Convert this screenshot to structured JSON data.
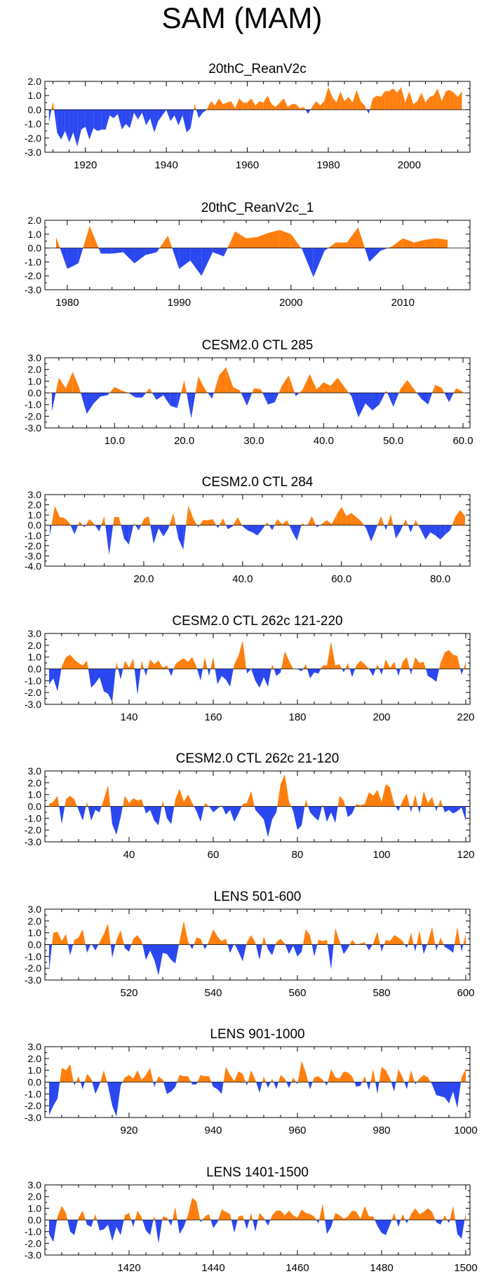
{
  "title": "SAM (MAM)",
  "colors": {
    "positive": "#ff7f0e",
    "negative": "#2a47f0",
    "axis": "#000000"
  },
  "chart_data": [
    {
      "type": "area",
      "title": "20thC_ReanV2c",
      "xlim": [
        1910,
        2015
      ],
      "ylim": [
        -3.0,
        2.0
      ],
      "ytick_labels": [
        "2.0",
        "1.0",
        "0.0",
        "-1.0",
        "-2.0",
        "-3.0"
      ],
      "ytick_values": [
        2.0,
        1.0,
        0.0,
        -1.0,
        -2.0,
        -3.0
      ],
      "xtick_labels": [
        "1920",
        "1940",
        "1960",
        "1980",
        "2000"
      ],
      "xtick_values": [
        1920,
        1940,
        1960,
        1980,
        2000
      ],
      "x_start": 1911,
      "x_step": 1,
      "values": [
        -0.9,
        0.6,
        -1.6,
        -2.1,
        -1.5,
        -2.3,
        -1.6,
        -2.6,
        -1.4,
        -1.2,
        -2.1,
        -1.3,
        -1.5,
        -1.4,
        -1.4,
        -0.4,
        -0.6,
        -0.3,
        -1.4,
        -1.0,
        -1.3,
        -0.2,
        -0.7,
        -0.2,
        -1.1,
        -0.6,
        -1.6,
        -0.8,
        -0.4,
        0.0,
        -0.8,
        -0.4,
        -1.1,
        -0.4,
        -1.6,
        -1.3,
        0.4,
        -0.6,
        -0.2,
        0.0,
        0.6,
        0.3,
        0.8,
        0.4,
        0.5,
        0.6,
        0.1,
        0.8,
        0.5,
        0.5,
        0.8,
        0.3,
        0.6,
        0.5,
        1.0,
        0.4,
        0.2,
        0.5,
        0.8,
        0.2,
        0.4,
        0.4,
        0.1,
        0.2,
        -0.3,
        0.2,
        0.6,
        0.3,
        0.6,
        1.6,
        0.9,
        0.5,
        1.3,
        0.6,
        0.9,
        0.5,
        1.4,
        0.6,
        0.3,
        -0.3,
        0.8,
        1.0,
        0.9,
        1.3,
        1.3,
        1.5,
        1.2,
        1.6,
        0.5,
        1.3,
        0.4,
        0.6,
        1.2,
        0.5,
        0.9,
        1.0,
        1.5,
        0.6,
        1.3,
        1.4,
        1.2,
        0.9,
        1.3
      ]
    },
    {
      "type": "area",
      "title": "20thC_ReanV2c_1",
      "xlim": [
        1978,
        2016
      ],
      "ylim": [
        -3.0,
        2.0
      ],
      "ytick_labels": [
        "2.0",
        "1.0",
        "0.0",
        "-1.0",
        "-2.0",
        "-3.0"
      ],
      "ytick_values": [
        2.0,
        1.0,
        0.0,
        -1.0,
        -2.0,
        -3.0
      ],
      "xtick_labels": [
        "1980",
        "1990",
        "2000",
        "2010"
      ],
      "xtick_values": [
        1980,
        1990,
        2000,
        2010
      ],
      "x_start": 1979,
      "x_step": 1,
      "values": [
        0.8,
        -1.5,
        -1.1,
        1.6,
        -0.4,
        -0.4,
        -0.3,
        -1.1,
        -0.5,
        -0.3,
        0.9,
        -1.5,
        -0.9,
        -2.0,
        -0.3,
        -0.6,
        1.2,
        0.7,
        0.8,
        1.1,
        1.3,
        1.0,
        -0.1,
        -2.1,
        -0.2,
        0.4,
        0.4,
        1.5,
        -1.0,
        -0.2,
        0.1,
        0.7,
        0.4,
        0.6,
        0.7,
        0.6
      ]
    },
    {
      "type": "area",
      "title": "CESM2.0 CTL 285",
      "xlim": [
        0,
        61
      ],
      "ylim": [
        -3.0,
        3.0
      ],
      "ytick_labels": [
        "3.0",
        "2.0",
        "1.0",
        "0.0",
        "-1.0",
        "-2.0",
        "-3.0"
      ],
      "ytick_values": [
        3.0,
        2.0,
        1.0,
        0.0,
        -1.0,
        -2.0,
        -3.0
      ],
      "xtick_labels": [
        "10.0",
        "20.0",
        "30.0",
        "40.0",
        "50.0",
        "60.0"
      ],
      "xtick_values": [
        10,
        20,
        30,
        40,
        50,
        60
      ],
      "x_start": 1,
      "x_step": 1,
      "values": [
        -1.6,
        1.3,
        0.4,
        1.8,
        0.3,
        -1.8,
        -0.9,
        -0.3,
        -0.2,
        0.5,
        0.2,
        0.0,
        -0.4,
        -0.4,
        0.4,
        -0.6,
        -0.2,
        -1.1,
        -1.3,
        1.1,
        -2.2,
        1.4,
        0.3,
        -0.5,
        1.5,
        2.2,
        0.5,
        0.2,
        -1.1,
        0.4,
        0.3,
        -1.0,
        -0.8,
        0.6,
        1.5,
        -0.3,
        0.3,
        1.6,
        0.3,
        0.9,
        0.6,
        1.3,
        0.5,
        -0.3,
        -2.1,
        -0.9,
        -1.5,
        -1.0,
        0.2,
        -1.2,
        0.3,
        1.1,
        0.3,
        -0.5,
        -1.0,
        0.7,
        0.4,
        -0.8,
        0.4,
        0.1
      ]
    },
    {
      "type": "area",
      "title": "CESM2.0 CTL 284",
      "xlim": [
        0,
        86
      ],
      "ylim": [
        -4.0,
        3.0
      ],
      "ytick_labels": [
        "3.0",
        "2.0",
        "1.0",
        "0.0",
        "-1.0",
        "-2.0",
        "-3.0",
        "-4.0"
      ],
      "ytick_values": [
        3.0,
        2.0,
        1.0,
        0.0,
        -1.0,
        -2.0,
        -3.0,
        -4.0
      ],
      "xtick_labels": [
        "20.0",
        "40.0",
        "60.0",
        "80.0"
      ],
      "xtick_values": [
        20,
        40,
        60,
        80
      ],
      "x_start": 1,
      "x_step": 1,
      "values": [
        -1.0,
        1.9,
        0.8,
        0.7,
        0.2,
        -0.9,
        0.4,
        -0.2,
        0.6,
        0.1,
        -0.6,
        0.9,
        -2.9,
        0.8,
        0.8,
        -1.3,
        -1.9,
        0.2,
        -0.5,
        0.6,
        0.9,
        -1.8,
        -0.3,
        -1.1,
        -0.3,
        1.2,
        -1.3,
        -2.4,
        1.9,
        0.7,
        -0.2,
        0.5,
        0.5,
        0.6,
        -0.3,
        0.7,
        -0.4,
        -0.1,
        0.8,
        -0.1,
        -0.5,
        -0.7,
        -1.0,
        -0.4,
        0.3,
        -0.5,
        0.6,
        0.1,
        0.5,
        -0.6,
        -1.5,
        0.2,
        -0.1,
        0.9,
        -0.2,
        0.1,
        0.5,
        0.1,
        1.0,
        1.8,
        0.9,
        1.2,
        0.8,
        0.4,
        -0.3,
        -1.6,
        -0.4,
        0.9,
        -0.5,
        1.1,
        -1.3,
        -0.5,
        0.6,
        -0.7,
        0.5,
        -0.4,
        -1.4,
        -0.7,
        -1.0,
        -1.4,
        -0.9,
        -0.5,
        0.8,
        1.5,
        0.9
      ]
    },
    {
      "type": "area",
      "title": "CESM2.0 CTL 262c 121-220",
      "xlim": [
        120,
        221
      ],
      "ylim": [
        -3.0,
        3.0
      ],
      "ytick_labels": [
        "3.0",
        "2.0",
        "1.0",
        "0.0",
        "-1.0",
        "-2.0",
        "-3.0"
      ],
      "ytick_values": [
        3.0,
        2.0,
        1.0,
        0.0,
        -1.0,
        -2.0,
        -3.0
      ],
      "xtick_labels": [
        "140",
        "160",
        "180",
        "200",
        "220"
      ],
      "xtick_values": [
        140,
        160,
        180,
        200,
        220
      ],
      "x_start": 121,
      "x_step": 1,
      "values": [
        -1.3,
        -0.8,
        -1.9,
        0.2,
        1.0,
        1.2,
        0.8,
        0.5,
        0.3,
        0.7,
        -1.6,
        -1.2,
        -0.7,
        -1.9,
        -2.1,
        -2.8,
        0.6,
        -0.9,
        0.7,
        0.1,
        0.9,
        -2.2,
        0.7,
        -0.6,
        0.8,
        0.4,
        0.7,
        0.1,
        0.3,
        -0.6,
        0.4,
        0.7,
        0.9,
        0.6,
        1.0,
        0.2,
        -1.0,
        1.0,
        -0.6,
        1.0,
        -1.3,
        -0.6,
        -0.9,
        -1.5,
        0.4,
        1.1,
        2.4,
        -0.4,
        0.0,
        -1.0,
        -1.6,
        -0.7,
        -1.5,
        0.4,
        -0.6,
        -0.3,
        1.5,
        0.7,
        0.0,
        0.0,
        -0.2,
        0.4,
        -0.8,
        -0.3,
        -0.4,
        0.3,
        0.3,
        2.3,
        0.3,
        0.4,
        -0.3,
        0.5,
        -0.7,
        0.3,
        0.7,
        0.4,
        0.0,
        -0.6,
        0.4,
        -0.5,
        0.8,
        0.1,
        0.6,
        -0.6,
        0.6,
        1.0,
        -0.5,
        1.0,
        0.5,
        0.6,
        -0.6,
        -0.8,
        -1.1,
        0.5,
        1.4,
        1.6,
        1.2,
        1.1,
        -0.5,
        0.6
      ]
    },
    {
      "type": "area",
      "title": "CESM2.0 CTL 262c 21-120",
      "xlim": [
        20,
        121
      ],
      "ylim": [
        -3.0,
        3.0
      ],
      "ytick_labels": [
        "3.0",
        "2.0",
        "1.0",
        "0.0",
        "-1.0",
        "-2.0",
        "-3.0"
      ],
      "ytick_values": [
        3.0,
        2.0,
        1.0,
        0.0,
        -1.0,
        -2.0,
        -3.0
      ],
      "xtick_labels": [
        "40",
        "60",
        "80",
        "100",
        "120"
      ],
      "xtick_values": [
        40,
        60,
        80,
        100,
        120
      ],
      "x_start": 21,
      "x_step": 1,
      "values": [
        0.2,
        0.4,
        0.9,
        -1.5,
        0.6,
        0.9,
        0.6,
        -0.3,
        -1.2,
        0.4,
        -1.2,
        -0.3,
        -0.5,
        0.6,
        1.8,
        -1.5,
        -2.4,
        -0.9,
        0.9,
        0.3,
        0.7,
        0.5,
        0.6,
        -0.6,
        -0.3,
        -1.2,
        -1.6,
        0.5,
        -1.0,
        -1.5,
        0.6,
        1.5,
        0.4,
        1.0,
        0.3,
        -0.4,
        -1.3,
        0.3,
        0.0,
        -0.5,
        -0.2,
        0.1,
        -0.7,
        -0.3,
        -1.3,
        -0.6,
        0.2,
        0.3,
        1.3,
        -0.3,
        -0.7,
        -1.1,
        -2.6,
        -1.1,
        -0.5,
        1.9,
        2.7,
        0.4,
        -0.4,
        -2.0,
        -1.6,
        0.6,
        -0.5,
        -0.9,
        -1.2,
        0.2,
        -1.3,
        -0.5,
        -1.4,
        0.9,
        0.5,
        -0.9,
        -0.6,
        0.2,
        0.1,
        0.2,
        1.2,
        0.9,
        1.4,
        0.4,
        1.9,
        1.6,
        0.2,
        -0.4,
        0.5,
        1.1,
        -0.5,
        1.0,
        -0.6,
        1.3,
        0.3,
        0.8,
        -0.4,
        0.6,
        -0.5,
        -0.3,
        -0.6,
        -0.4,
        -0.1,
        -1.2
      ]
    },
    {
      "type": "area",
      "title": "LENS 501-600",
      "xlim": [
        500,
        601
      ],
      "ylim": [
        -3.0,
        3.0
      ],
      "ytick_labels": [
        "3.0",
        "2.0",
        "1.0",
        "0.0",
        "-1.0",
        "-2.0",
        "-3.0"
      ],
      "ytick_values": [
        3.0,
        2.0,
        1.0,
        0.0,
        -1.0,
        -2.0,
        -3.0
      ],
      "xtick_labels": [
        "520",
        "540",
        "560",
        "580",
        "600"
      ],
      "xtick_values": [
        520,
        540,
        560,
        580,
        600
      ],
      "x_start": 501,
      "x_step": 1,
      "values": [
        -2.2,
        1.0,
        1.1,
        0.3,
        0.9,
        -0.9,
        0.4,
        0.6,
        1.3,
        -0.7,
        0.1,
        -0.5,
        0.2,
        0.9,
        1.8,
        -1.1,
        0.4,
        1.2,
        -0.3,
        -0.6,
        0.5,
        0.8,
        0.3,
        -1.3,
        -0.5,
        -1.3,
        -2.6,
        -0.7,
        -0.8,
        -1.3,
        -1.6,
        0.3,
        2.0,
        0.3,
        -0.4,
        0.6,
        0.5,
        -0.4,
        0.3,
        1.3,
        0.7,
        0.3,
        0.5,
        -0.7,
        0.1,
        -0.6,
        -1.4,
        0.2,
        0.8,
        0.2,
        -1.3,
        0.7,
        -0.4,
        -0.9,
        0.2,
        0.5,
        0.1,
        -0.8,
        -0.1,
        -1.0,
        -0.6,
        1.3,
        0.8,
        -1.0,
        0.4,
        0.3,
        0.4,
        -2.1,
        1.4,
        0.3,
        -0.8,
        -0.3,
        0.4,
        0.0,
        0.1,
        0.2,
        -0.5,
        0.1,
        1.1,
        -0.6,
        0.4,
        0.3,
        0.8,
        0.6,
        0.3,
        -0.3,
        1.0,
        -0.6,
        1.2,
        -0.8,
        0.2,
        1.5,
        -0.5,
        0.6,
        -0.2,
        -0.4,
        -0.7,
        1.5,
        -0.6,
        0.9
      ]
    },
    {
      "type": "area",
      "title": "LENS 901-1000",
      "xlim": [
        900,
        1001
      ],
      "ylim": [
        -3.0,
        3.0
      ],
      "ytick_labels": [
        "3.0",
        "2.0",
        "1.0",
        "0.0",
        "-1.0",
        "-2.0",
        "-3.0"
      ],
      "ytick_values": [
        3.0,
        2.0,
        1.0,
        0.0,
        -1.0,
        -2.0,
        -3.0
      ],
      "xtick_labels": [
        "920",
        "940",
        "960",
        "980",
        "1000"
      ],
      "xtick_values": [
        920,
        940,
        960,
        980,
        1000
      ],
      "x_start": 901,
      "x_step": 1,
      "values": [
        -2.8,
        -2.0,
        -1.4,
        1.2,
        1.0,
        1.5,
        -0.3,
        0.5,
        -0.6,
        0.7,
        0.3,
        -1.0,
        -0.2,
        1.0,
        -0.3,
        -2.0,
        -2.9,
        -0.3,
        0.4,
        0.6,
        0.3,
        1.0,
        0.2,
        0.6,
        1.2,
        -0.4,
        0.5,
        0.2,
        -1.0,
        -0.8,
        -0.4,
        0.6,
        0.5,
        0.5,
        -0.2,
        -0.2,
        0.6,
        0.5,
        0.5,
        -0.4,
        -0.6,
        -1.0,
        1.3,
        0.6,
        0.1,
        0.9,
        0.7,
        -0.3,
        1.0,
        0.2,
        -0.9,
        0.5,
        -0.5,
        0.3,
        -0.6,
        0.6,
        0.3,
        -0.5,
        0.4,
        -0.2,
        1.8,
        0.8,
        -0.6,
        0.4,
        0.5,
        0.2,
        -0.3,
        1.1,
        0.4,
        0.3,
        0.9,
        0.8,
        0.5,
        -0.4,
        -0.3,
        0.5,
        -0.7,
        1.1,
        -1.0,
        1.3,
        1.0,
        0.3,
        -0.8,
        1.1,
        0.4,
        -0.6,
        1.0,
        -0.2,
        0.3,
        0.6,
        0.4,
        -0.2,
        -1.1,
        -1.2,
        -1.3,
        -1.8,
        -0.8,
        -2.2,
        0.4,
        1.1
      ]
    },
    {
      "type": "area",
      "title": "LENS 1401-1500",
      "xlim": [
        1400,
        1501
      ],
      "ylim": [
        -3.0,
        3.0
      ],
      "ytick_labels": [
        "3.0",
        "2.0",
        "1.0",
        "0.0",
        "-1.0",
        "-2.0",
        "-3.0"
      ],
      "ytick_values": [
        3.0,
        2.0,
        1.0,
        0.0,
        -1.0,
        -2.0,
        -3.0
      ],
      "xtick_labels": [
        "1420",
        "1440",
        "1460",
        "1480",
        "1500"
      ],
      "xtick_values": [
        1420,
        1440,
        1460,
        1480,
        1500
      ],
      "x_start": 1401,
      "x_step": 1,
      "values": [
        -1.2,
        -1.9,
        0.3,
        1.2,
        0.6,
        -1.0,
        -1.3,
        0.2,
        0.8,
        -0.4,
        -0.6,
        0.5,
        -0.9,
        -0.8,
        -0.4,
        -1.8,
        -0.6,
        -1.3,
        0.4,
        0.6,
        -0.6,
        0.8,
        0.2,
        -0.9,
        -1.3,
        0.4,
        -2.0,
        0.3,
        0.2,
        -0.5,
        1.1,
        -1.2,
        -0.6,
        0.4,
        1.9,
        1.6,
        -0.2,
        0.3,
        0.5,
        -0.7,
        -0.2,
        0.9,
        0.7,
        0.5,
        -1.1,
        0.3,
        0.4,
        -0.8,
        0.6,
        -1.0,
        0.6,
        0.2,
        -0.5,
        0.4,
        0.8,
        0.8,
        0.4,
        0.8,
        0.4,
        0.2,
        0.9,
        0.6,
        0.5,
        0.3,
        -0.3,
        1.4,
        -1.2,
        -0.6,
        0.6,
        0.4,
        0.1,
        0.3,
        0.8,
        0.7,
        0.1,
        1.2,
        0.3,
        0.3,
        -0.5,
        -1.1,
        -1.3,
        -0.4,
        0.6,
        -0.6,
        0.5,
        -0.3,
        0.5,
        1.0,
        0.5,
        0.7,
        1.0,
        0.7,
        -0.2,
        -0.4,
        0.4,
        -0.3,
        1.2,
        -1.2,
        -1.6,
        0.6
      ]
    }
  ]
}
